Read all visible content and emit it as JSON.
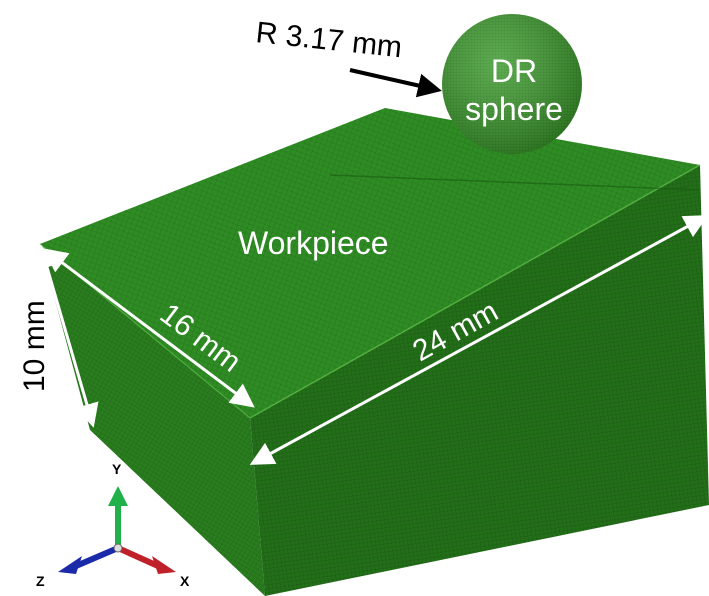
{
  "labels": {
    "radius": "R 3.17 mm",
    "sphere_line1": "DR",
    "sphere_line2": "sphere",
    "workpiece": "Workpiece",
    "height": "10 mm",
    "width": "16 mm",
    "length": "24 mm"
  },
  "axes": {
    "y": "Y",
    "x": "X",
    "z": "Z"
  },
  "colors": {
    "mesh_top": "#2e8a22",
    "mesh_front": "#1f6a16",
    "mesh_side": "#27791b",
    "sphere": "#3a9a2a",
    "dimension_arrows": "#ffffff",
    "leader_arrow": "#000000",
    "axis_y": "#22b04a",
    "axis_x": "#c0202a",
    "axis_z": "#1a2aa8"
  }
}
